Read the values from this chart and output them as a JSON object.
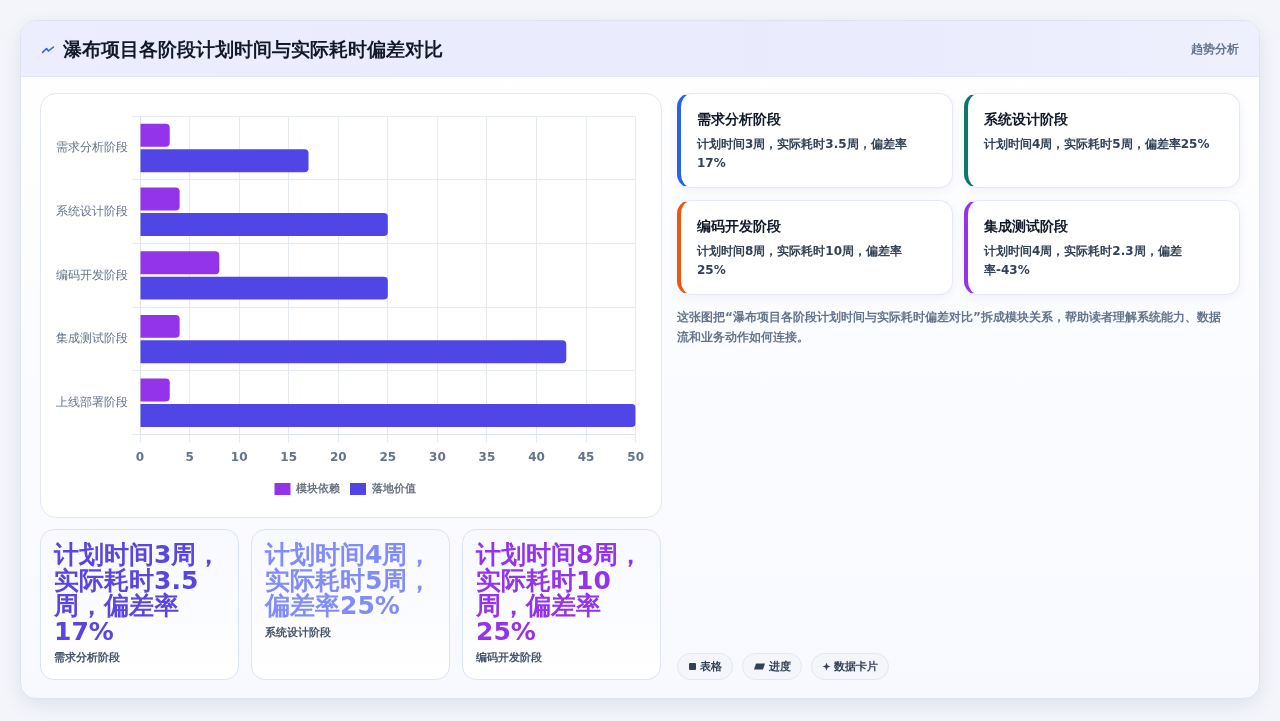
{
  "chart_data": {
    "type": "bar",
    "orientation": "horizontal",
    "title": "瀑布项目各阶段计划时间与实际耗时偏差对比",
    "categories": [
      "需求分析阶段",
      "系统设计阶段",
      "编码开发阶段",
      "集成测试阶段",
      "上线部署阶段"
    ],
    "series": [
      {
        "name": "模块依赖",
        "color": "#9333ea",
        "values": [
          3,
          4,
          8,
          4,
          3
        ]
      },
      {
        "name": "落地价值",
        "color": "#4f46e5",
        "values": [
          17,
          25,
          25,
          43,
          50
        ]
      }
    ],
    "xlim": [
      0,
      50
    ],
    "xticks": [
      0,
      5,
      10,
      15,
      20,
      25,
      30,
      35,
      40,
      45,
      50
    ],
    "grid": true,
    "legend": "bottom",
    "annotations": [
      "趋势分析",
      "需求分析阶段",
      "计划时间3周，实际耗时3.5周，偏差率17%",
      "系统设计阶段",
      "计划时间4周，实际耗时5周，偏差率25%",
      "编码开发阶段",
      "计划时间8周，实际耗时10周，偏差率25%",
      "集成测试阶段",
      "计划时间4周，实际耗时2.3周，偏差率-43%",
      "这张图把“瀑布项目各阶段计划时间与实际耗时偏差对比”拆成模块关系，帮助读者理解系统能力、数据流和业务动作如何连接。",
      "计划时间3周，实际耗时3.5周，偏差率17%",
      "需求分析阶段",
      "计划时间4周，实际耗时5周，偏差率25%",
      "系统设计阶段",
      "计划时间8周，实际耗时10周，偏差率25%",
      "编码开发阶段",
      "表格",
      "进度",
      "数据卡片"
    ]
  }
}
